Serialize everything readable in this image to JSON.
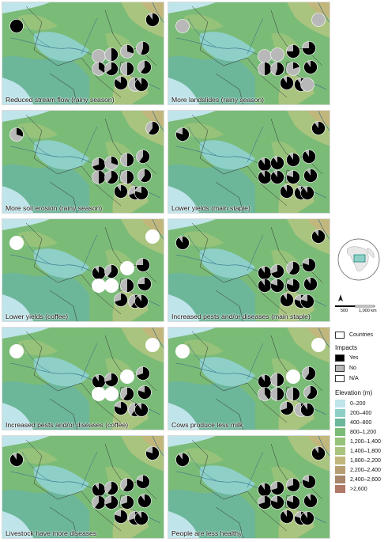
{
  "panels": [
    {
      "label": "Reduced stream flow (rainy season)",
      "pies": [
        1,
        0,
        0.5,
        0.35,
        0.65,
        0.3,
        0.55,
        0.5,
        0.6,
        0.2,
        0.85,
        0.9,
        0.9
      ]
    },
    {
      "label": "More landslides (rainy season)",
      "pies": [
        0,
        0,
        0,
        0.5,
        0.55,
        0.75,
        0.75,
        0.2,
        0.9,
        0.9,
        0.9,
        0,
        0
      ]
    },
    {
      "label": "More soil erosion (rainy season)",
      "pies": [
        0.3,
        0.7,
        0.3,
        0.5,
        0.6,
        0.5,
        0.6,
        0.5,
        0.6,
        0.7,
        0.9,
        0.8,
        0.6
      ]
    },
    {
      "label": "Lower yields (main staple)",
      "pies": [
        0.8,
        0.9,
        0.9,
        0.9,
        0.9,
        0.9,
        0.9,
        0.8,
        0.9,
        0.9,
        0.9,
        0.9,
        0.9
      ]
    },
    {
      "label": "Lower yields (coffee)",
      "pies": [
        -1,
        0.9,
        0.6,
        -1,
        -1,
        -1,
        0.75,
        0.5,
        0.75,
        0.6,
        0.7,
        0.9,
        -1
      ]
    },
    {
      "label": "Increased pests and/or diseases (main staple)",
      "pies": [
        0.9,
        0.9,
        0.7,
        0.9,
        0.8,
        0.6,
        0.8,
        0.8,
        0.9,
        0.8,
        0.9,
        0.8,
        0.9
      ]
    },
    {
      "label": "Increased pests and/or diseases (coffee)",
      "pies": [
        -1,
        0.9,
        0.7,
        -1,
        -1,
        -1,
        0.7,
        0.6,
        0.8,
        0.6,
        0.8,
        0.9,
        -1
      ]
    },
    {
      "label": "Cows produce less milk",
      "pies": [
        -1,
        0.9,
        0.5,
        0.4,
        0.5,
        -1,
        0.6,
        0.5,
        0.6,
        0.4,
        0.7,
        0.9,
        -1
      ]
    },
    {
      "label": "Livestock have more diseases",
      "pies": [
        0.9,
        0.9,
        0.6,
        0.6,
        0.7,
        0.6,
        0.8,
        0.7,
        0.9,
        0.7,
        0.8,
        0.9,
        0.8
      ]
    },
    {
      "label": "People are less healthy",
      "pies": [
        0.9,
        0.9,
        0.7,
        0.7,
        0.8,
        0.7,
        0.8,
        0.8,
        0.9,
        0.8,
        0.9,
        0.9,
        0.9
      ]
    }
  ],
  "legend": {
    "countries_label": "Countries",
    "impacts_title": "Impacts",
    "impacts": [
      {
        "label": "Yes",
        "color": "#000000"
      },
      {
        "label": "No",
        "color": "#b8b8b8"
      },
      {
        "label": "N/A",
        "color": "#ffffff"
      }
    ],
    "elevation_title": "Elevation (m)",
    "elevation": [
      {
        "label": "0–200",
        "color": "#bfe4ea"
      },
      {
        "label": "200–400",
        "color": "#8ed0c8"
      },
      {
        "label": "400–800",
        "color": "#6cb69a"
      },
      {
        "label": "800–1,200",
        "color": "#7bbb78"
      },
      {
        "label": "1,200–1,400",
        "color": "#96c27a"
      },
      {
        "label": "1,400–1,800",
        "color": "#a9c47e"
      },
      {
        "label": "1,800–2,200",
        "color": "#c1b77c"
      },
      {
        "label": "2,200–2,400",
        "color": "#b79e72"
      },
      {
        "label": "2,400–2,600",
        "color": "#a8856a"
      },
      {
        "label": ">2,600",
        "color": "#b07866"
      }
    ]
  },
  "scale": {
    "labels": [
      "500",
      "1,000 km"
    ]
  },
  "north_label": "N"
}
